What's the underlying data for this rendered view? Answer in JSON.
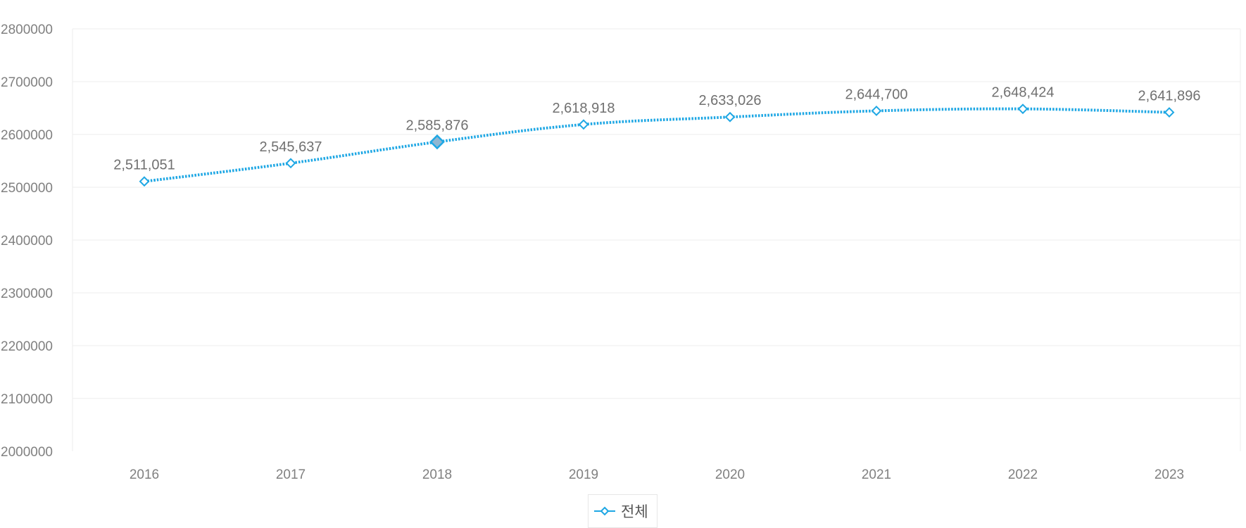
{
  "chart_data": {
    "type": "line",
    "title": "",
    "xlabel": "",
    "ylabel": "",
    "categories": [
      "2016",
      "2017",
      "2018",
      "2019",
      "2020",
      "2021",
      "2022",
      "2023"
    ],
    "y_ticks": [
      "2000000",
      "2100000",
      "2200000",
      "2300000",
      "2400000",
      "2500000",
      "2600000",
      "2700000",
      "2800000"
    ],
    "ylim": [
      2000000,
      2800000
    ],
    "grid": true,
    "legend_position": "bottom-center",
    "series": [
      {
        "name": "전체",
        "color": "#1ea7e4",
        "line_style": "dotted",
        "marker": "diamond",
        "values": [
          2511051,
          2545637,
          2585876,
          2618918,
          2633026,
          2644700,
          2648424,
          2641896
        ],
        "data_labels": [
          "2,511,051",
          "2,545,637",
          "2,585,876",
          "2,618,918",
          "2,633,026",
          "2,644,700",
          "2,648,424",
          "2,641,896"
        ],
        "highlighted_category": "2018"
      }
    ]
  }
}
